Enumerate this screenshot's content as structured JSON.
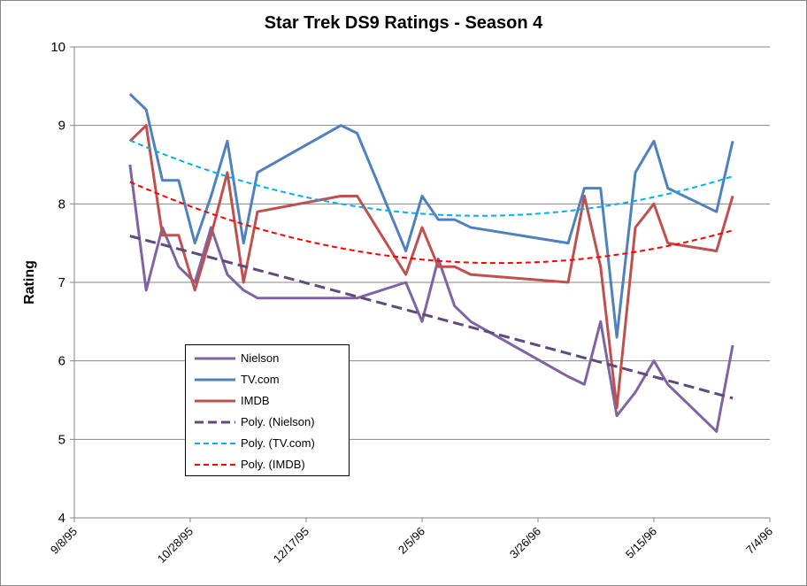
{
  "chart_data": {
    "type": "line",
    "title": "Star Trek DS9 Ratings - Season 4",
    "xlabel": "",
    "ylabel": "Rating",
    "ylim": [
      4,
      10
    ],
    "yticks": [
      "4",
      "5",
      "6",
      "7",
      "8",
      "9",
      "10"
    ],
    "xlim_days_from_start": [
      0,
      300
    ],
    "xticks": [
      "9/8/95",
      "10/28/95",
      "12/17/95",
      "2/5/96",
      "3/26/96",
      "5/15/96",
      "7/4/96"
    ],
    "x_days_since_9_8_95": [
      24,
      31,
      38,
      45,
      52,
      59,
      66,
      73,
      79,
      115,
      122,
      143,
      150,
      157,
      164,
      171,
      213,
      220,
      227,
      234,
      242,
      250,
      256,
      277,
      284
    ],
    "series": [
      {
        "name": "Nielson",
        "color": "#8064A2",
        "values": [
          8.5,
          6.9,
          7.7,
          7.2,
          7.0,
          7.7,
          7.1,
          6.9,
          6.8,
          6.8,
          6.8,
          7.0,
          6.5,
          7.3,
          6.7,
          6.5,
          5.8,
          5.7,
          6.5,
          5.3,
          5.6,
          6.0,
          5.7,
          5.1,
          6.2
        ]
      },
      {
        "name": "TV.com",
        "color": "#4F81BD",
        "values": [
          9.4,
          9.2,
          8.3,
          8.3,
          7.5,
          8.1,
          8.8,
          7.5,
          8.4,
          9.0,
          8.9,
          7.4,
          8.1,
          7.8,
          7.8,
          7.7,
          7.5,
          8.2,
          8.2,
          6.3,
          8.4,
          8.8,
          8.2,
          7.9,
          8.8
        ]
      },
      {
        "name": "IMDB",
        "color": "#C0504D",
        "values": [
          8.8,
          9.0,
          7.6,
          7.6,
          6.9,
          7.6,
          8.4,
          7.0,
          7.9,
          8.1,
          8.1,
          7.1,
          7.7,
          7.2,
          7.2,
          7.1,
          7.0,
          8.1,
          7.2,
          5.4,
          7.7,
          8.0,
          7.5,
          7.4,
          8.1
        ]
      }
    ],
    "trendlines": [
      {
        "name": "Poly. (Nielson)",
        "of": "Nielson",
        "order": 2,
        "color": "#604A7B"
      },
      {
        "name": "Poly. (TV.com)",
        "of": "TV.com",
        "order": 2,
        "color": "#00B0F0"
      },
      {
        "name": "Poly. (IMDB)",
        "of": "IMDB",
        "order": 2,
        "color": "#FF0000"
      }
    ],
    "grid": true,
    "legend_position": "bottom-left-inside"
  }
}
